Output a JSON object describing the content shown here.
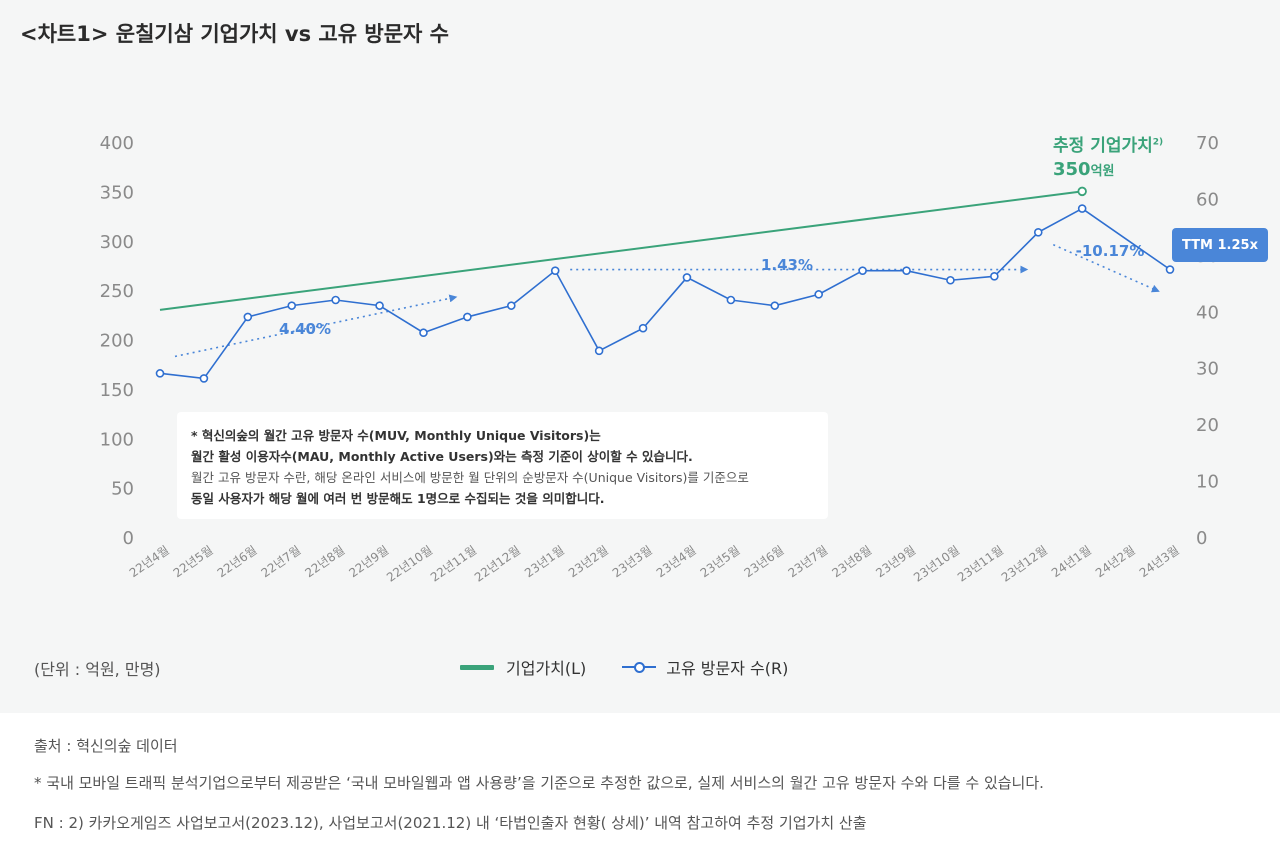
{
  "title": "<차트1>   운칠기삼 기업가치 vs 고유 방문자 수",
  "chart_data": {
    "type": "line",
    "categories": [
      "22년4월",
      "22년5월",
      "22년6월",
      "22년7월",
      "22년8월",
      "22년9월",
      "22년10월",
      "22년11월",
      "22년12월",
      "23년1월",
      "23년2월",
      "23년3월",
      "23년4월",
      "23년5월",
      "23년6월",
      "23년7월",
      "23년8월",
      "23년9월",
      "23년10월",
      "23년11월",
      "23년12월",
      "24년1월",
      "24년2월",
      "24년3월"
    ],
    "y_left": {
      "range": [
        0,
        400
      ],
      "ticks": [
        0,
        50,
        100,
        150,
        200,
        250,
        300,
        350,
        400
      ]
    },
    "y_right": {
      "range": [
        0,
        70
      ],
      "ticks": [
        0,
        10,
        20,
        30,
        40,
        50,
        60,
        70
      ]
    },
    "series": [
      {
        "name": "기업가치(L)",
        "axis": "left",
        "color": "#3aa37a",
        "x": [
          "22년4월",
          "24년1월"
        ],
        "values": [
          230,
          350
        ]
      },
      {
        "name": "고유 방문자 수(R)",
        "axis": "right",
        "color": "#2f6fd0",
        "values": [
          29.0,
          28.1,
          39.0,
          41.0,
          42.0,
          41.0,
          36.2,
          39.0,
          41.0,
          47.2,
          33.0,
          37.0,
          46.0,
          42.0,
          41.0,
          43.0,
          47.2,
          47.2,
          45.5,
          46.2,
          54.0,
          58.2,
          null,
          47.4
        ]
      }
    ],
    "trend_annotations": [
      {
        "label": "4.40%",
        "from": [
          "22년4월",
          32.0
        ],
        "to": [
          "22년11월",
          42.5
        ]
      },
      {
        "label": "1.43%",
        "from": [
          "23년1월",
          47.4
        ],
        "to": [
          "23년12월",
          47.4
        ]
      },
      {
        "label": "-10.17%",
        "from": [
          "23년12월",
          51.8
        ],
        "to": [
          "24년3월",
          43.6
        ]
      }
    ],
    "legend": "bottom-center"
  },
  "estimate": {
    "label": "추정 기업가치",
    "footnote_mark": "2)",
    "value": "350",
    "unit": "억원"
  },
  "ttm_badge": "TTM 1.25x",
  "note": {
    "line1": "* 혁신의숲의 월간 고유 방문자 수(MUV, Monthly Unique Visitors)는",
    "line2": "월간 활성 이용자수(MAU, Monthly Active Users)와는 측정 기준이 상이할 수 있습니다.",
    "line3": "월간 고유 방문자 수란, 해당 온라인 서비스에 방문한 월 단위의 순방문자 수(Unique Visitors)를 기준으로",
    "line4": "동일 사용자가 해당 월에 여러 번 방문해도 1명으로 수집되는 것을 의미합니다."
  },
  "unit_text": "(단위 : 억원, 만명)",
  "legend": {
    "line_label": "기업가치(L)",
    "marker_label": "고유 방문자 수(R)"
  },
  "footer": {
    "source": "출처 : 혁신의숲 데이터",
    "note": "*  국내 모바일 트래픽 분석기업으로부터 제공받은 ‘국내 모바일웹과 앱 사용량’을 기준으로 추정한 값으로, 실제 서비스의 월간 고유 방문자 수와 다를 수 있습니다.",
    "fn": "FN : 2)  카카오게임즈 사업보고서(2023.12),  사업보고서(2021.12)  내 ‘타법인출자 현황( 상세)’  내역 참고하여 추정 기업가치 산출"
  }
}
